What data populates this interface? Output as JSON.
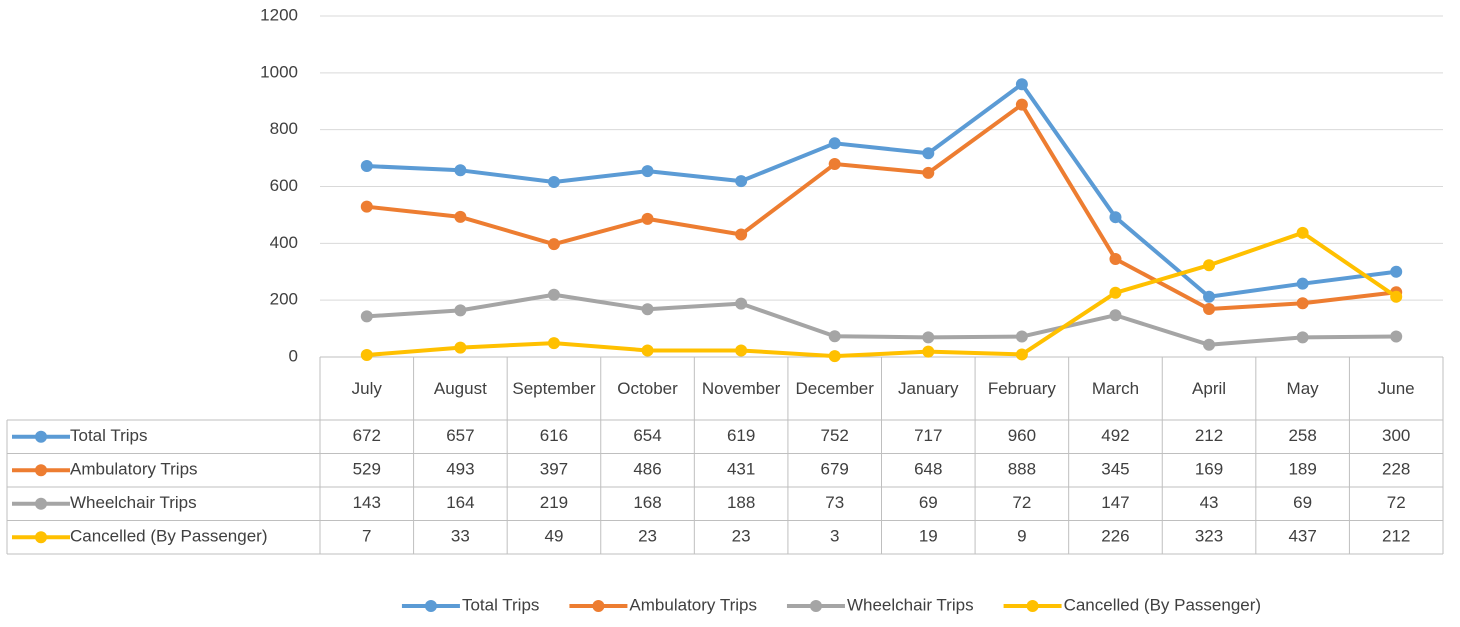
{
  "chart_data": {
    "type": "line",
    "categories": [
      "July",
      "August",
      "September",
      "October",
      "November",
      "December",
      "January",
      "February",
      "March",
      "April",
      "May",
      "June"
    ],
    "series": [
      {
        "name": "Total Trips",
        "color": "#5b9bd5",
        "values": [
          672,
          657,
          616,
          654,
          619,
          752,
          717,
          960,
          492,
          212,
          258,
          300
        ]
      },
      {
        "name": "Ambulatory Trips",
        "color": "#ed7d31",
        "values": [
          529,
          493,
          397,
          486,
          431,
          679,
          648,
          888,
          345,
          169,
          189,
          228
        ]
      },
      {
        "name": "Wheelchair Trips",
        "color": "#a5a5a5",
        "values": [
          143,
          164,
          219,
          168,
          188,
          73,
          69,
          72,
          147,
          43,
          69,
          72
        ]
      },
      {
        "name": "Cancelled (By Passenger)",
        "color": "#ffc000",
        "values": [
          7,
          33,
          49,
          23,
          23,
          3,
          19,
          9,
          226,
          323,
          437,
          212
        ]
      }
    ],
    "ylim": [
      0,
      1200
    ],
    "yticks": [
      0,
      200,
      400,
      600,
      800,
      1000,
      1200
    ],
    "grid": true,
    "legend": "bottom",
    "data_table": true
  }
}
